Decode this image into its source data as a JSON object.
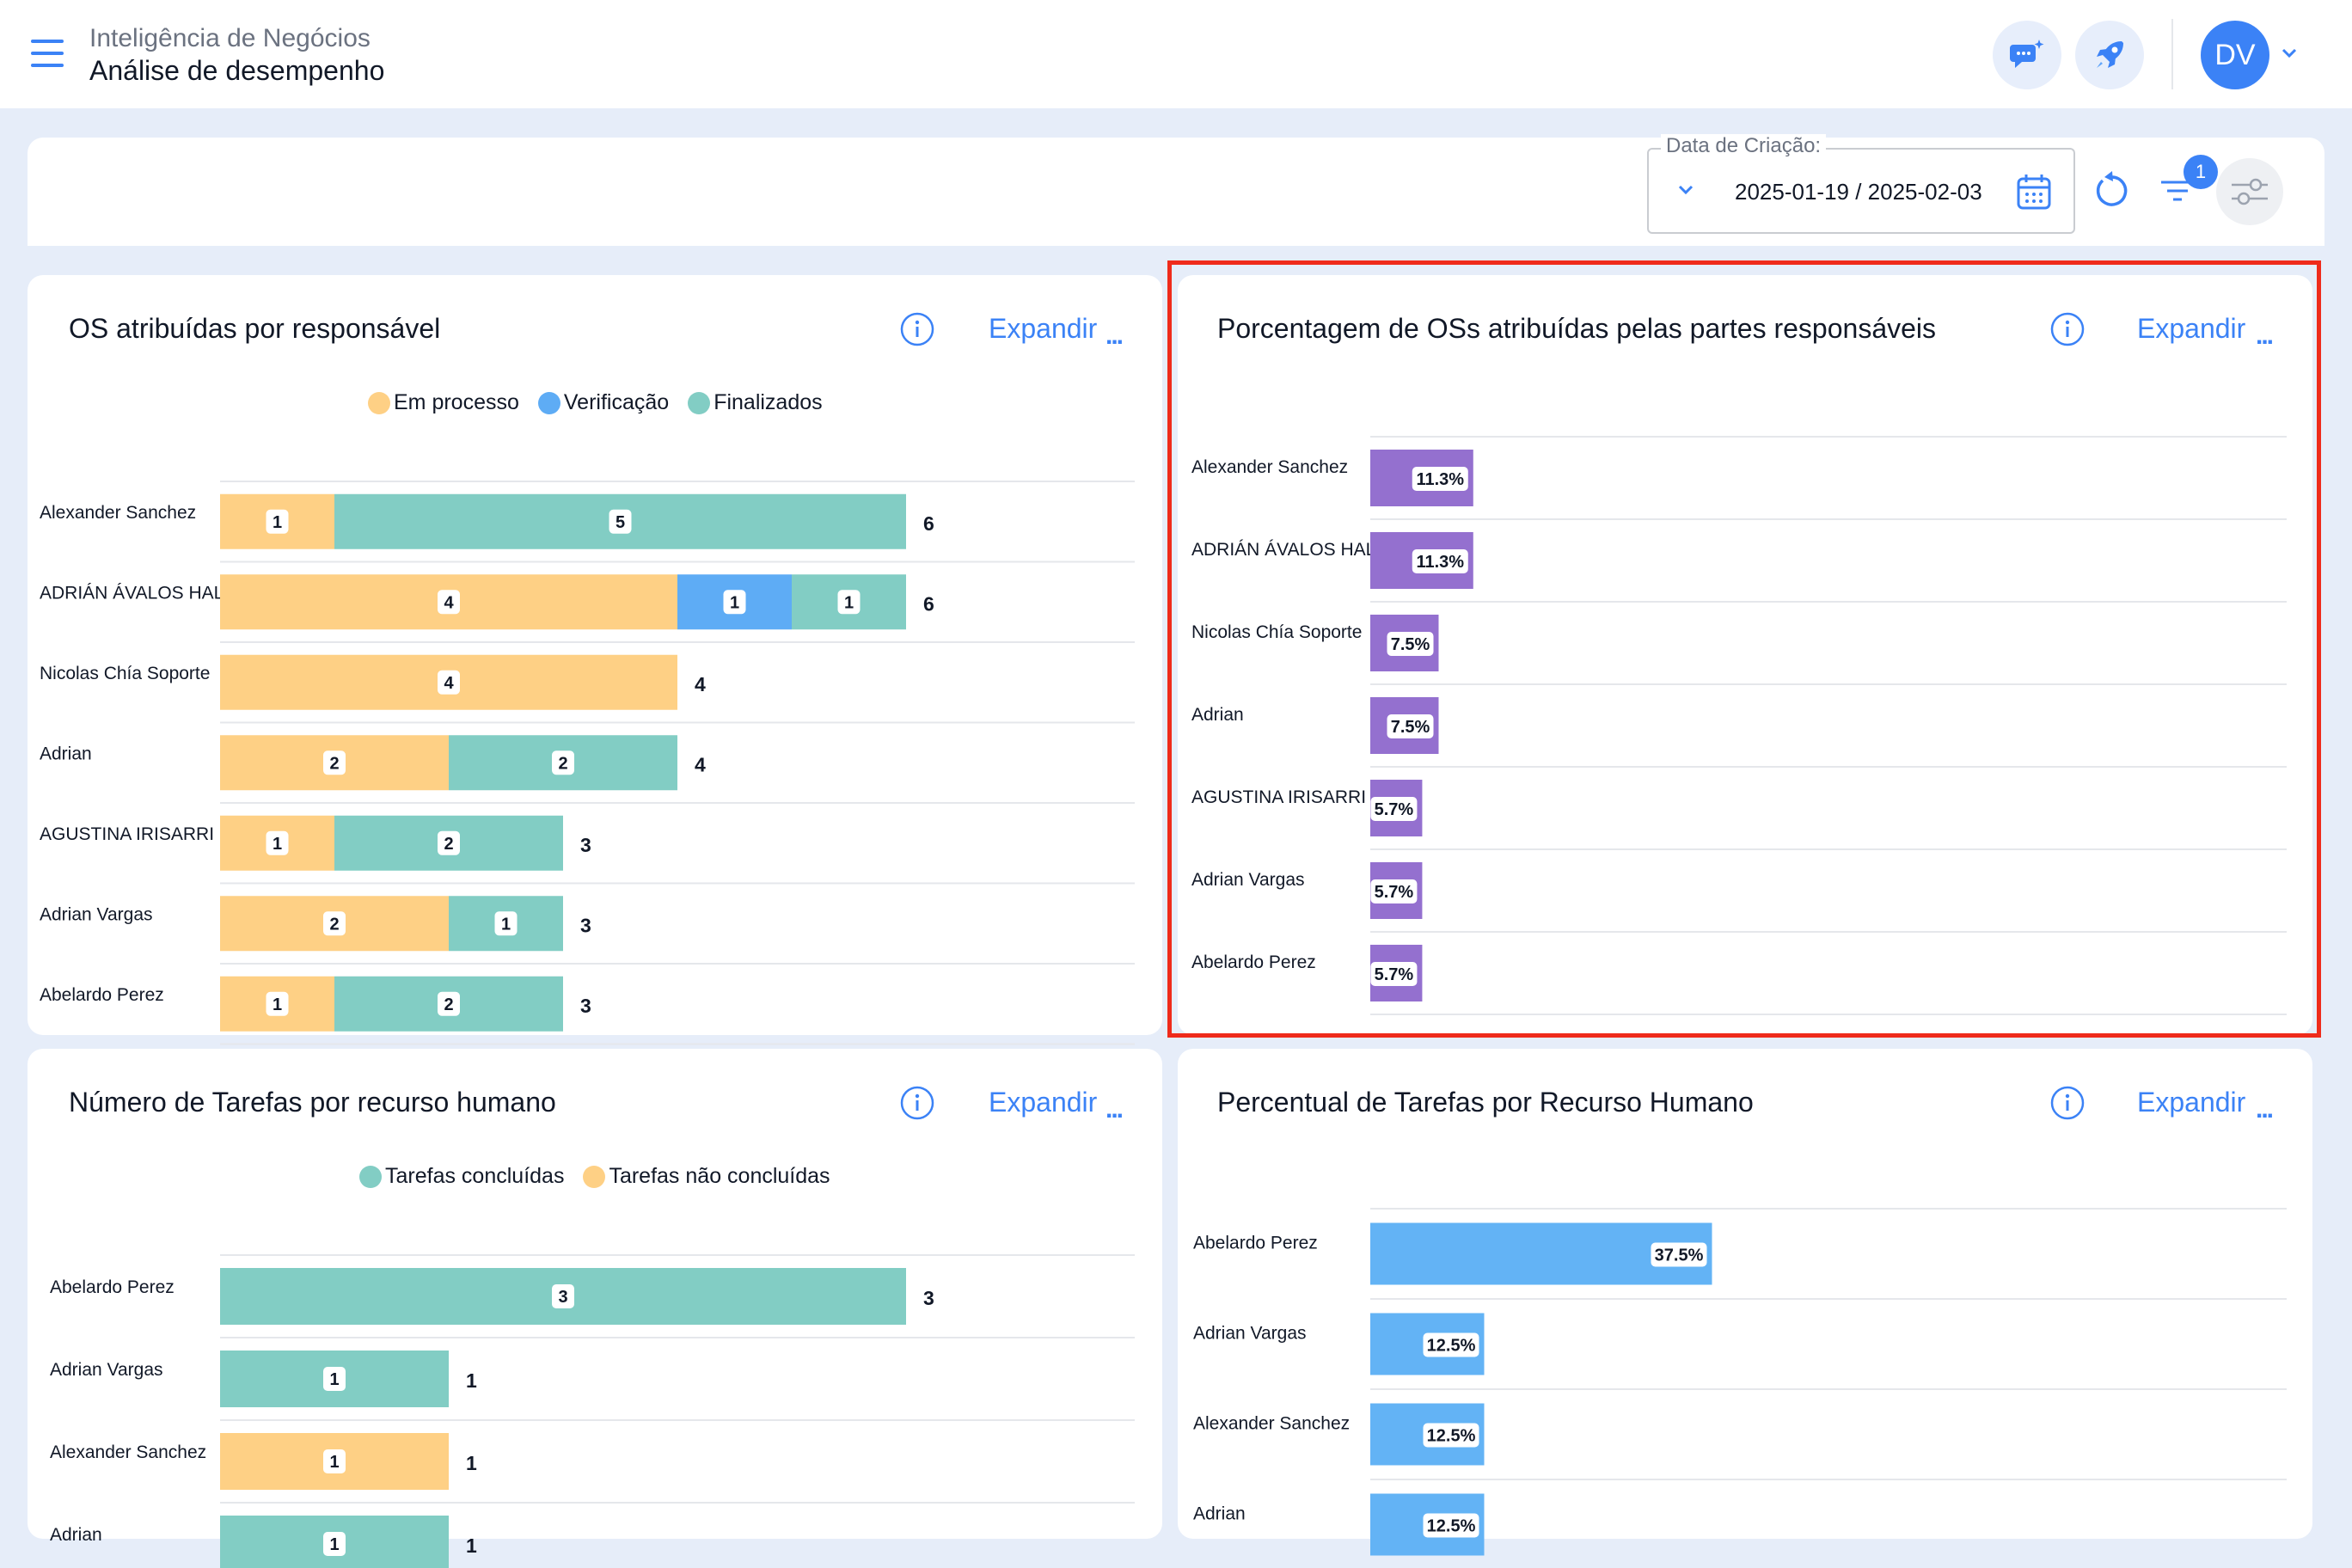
{
  "header": {
    "breadcrumb_parent": "Inteligência de Negócios",
    "page_title": "Análise de desempenho",
    "avatar_initials": "DV"
  },
  "filters": {
    "date_label": "Data de Criação:",
    "date_range": "2025-01-19 / 2025-02-03",
    "filter_count": "1"
  },
  "cards": {
    "os_by_responsible": {
      "title": "OS atribuídas por responsável",
      "expand_label": "Expandir",
      "more_label": "..."
    },
    "os_percentage": {
      "title": "Porcentagem de OSs atribuídas pelas partes responsáveis",
      "expand_label": "Expandir",
      "more_label": "..."
    },
    "tasks_by_resource": {
      "title": "Número de Tarefas por recurso humano",
      "expand_label": "Expandir",
      "more_label": "..."
    },
    "tasks_percentage": {
      "title": "Percentual de Tarefas por Recurso Humano",
      "expand_label": "Expandir",
      "more_label": "..."
    }
  },
  "colors": {
    "accent": "#3b82f6",
    "em_processo": "#fed085",
    "verificacao": "#5eacf5",
    "finalizados": "#82cdc4",
    "percent_purple": "#9470cf",
    "percent_blue": "#63b3f5",
    "highlight": "#ef2b1b"
  },
  "chart_data": [
    {
      "type": "bar",
      "orientation": "horizontal",
      "stacked": true,
      "title": "OS atribuídas por responsável",
      "categories": [
        "Alexander Sanchez",
        "ADRIÁN ÁVALOS HAL",
        "Nicolas Chía Soporte",
        "Adrian",
        "AGUSTINA IRISARRI",
        "Adrian Vargas",
        "Abelardo Perez"
      ],
      "series": [
        {
          "name": "Em processo",
          "values": [
            1,
            4,
            4,
            2,
            1,
            2,
            1
          ]
        },
        {
          "name": "Verificação",
          "values": [
            0,
            1,
            0,
            0,
            0,
            0,
            0
          ]
        },
        {
          "name": "Finalizados",
          "values": [
            5,
            1,
            0,
            2,
            2,
            1,
            2
          ]
        }
      ],
      "totals": [
        6,
        6,
        4,
        4,
        3,
        3,
        3
      ],
      "legend": "top-center"
    },
    {
      "type": "bar",
      "orientation": "horizontal",
      "title": "Porcentagem de OSs atribuídas pelas partes responsáveis",
      "categories": [
        "Alexander Sanchez",
        "ADRIÁN ÁVALOS HAL",
        "Nicolas Chía Soporte",
        "Adrian",
        "AGUSTINA IRISARRI",
        "Adrian Vargas",
        "Abelardo Perez"
      ],
      "values": [
        11.3,
        11.3,
        7.5,
        7.5,
        5.7,
        5.7,
        5.7
      ],
      "labels": [
        "11.3%",
        "11.3%",
        "7.5%",
        "7.5%",
        "5.7%",
        "5.7%",
        "5.7%"
      ]
    },
    {
      "type": "bar",
      "orientation": "horizontal",
      "stacked": true,
      "title": "Número de Tarefas por recurso humano",
      "categories": [
        "Abelardo Perez",
        "Adrian Vargas",
        "Alexander Sanchez",
        "Adrian"
      ],
      "series": [
        {
          "name": "Tarefas concluídas",
          "values": [
            3,
            1,
            0,
            1
          ]
        },
        {
          "name": "Tarefas não concluídas",
          "values": [
            0,
            0,
            1,
            0
          ]
        }
      ],
      "totals": [
        3,
        1,
        1,
        1
      ],
      "legend": "top-center"
    },
    {
      "type": "bar",
      "orientation": "horizontal",
      "title": "Percentual de Tarefas por Recurso Humano",
      "categories": [
        "Abelardo Perez",
        "Adrian Vargas",
        "Alexander Sanchez",
        "Adrian"
      ],
      "values": [
        37.5,
        12.5,
        12.5,
        12.5
      ],
      "labels": [
        "37.5%",
        "12.5%",
        "12.5%",
        "12.5%"
      ]
    }
  ]
}
